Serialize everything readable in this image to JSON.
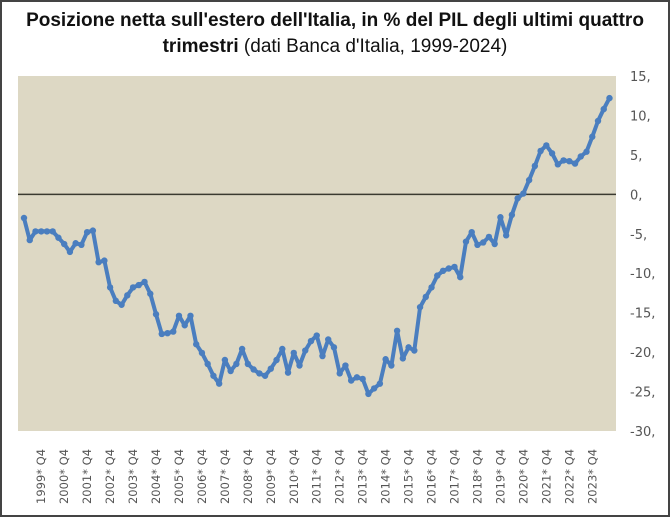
{
  "chart_data": {
    "type": "line",
    "title_bold": "Posizione netta sull'estero dell'Italia, in % del PIL degli ultimi quattro trimestri",
    "title_normal": "(dati Banca d'Italia, 1999-2024)",
    "xlabel": "",
    "ylabel": "",
    "ylim": [
      -30,
      15
    ],
    "y_ticks": [
      15,
      10,
      5,
      0,
      -5,
      -10,
      -15,
      -20,
      -25,
      -30
    ],
    "y_tick_labels": [
      "15,",
      "10,",
      "5,",
      "0,",
      "-5,",
      "-10,",
      "-15,",
      "-20,",
      "-25,",
      "-30,"
    ],
    "x_start_quarter": "1999 Q1",
    "x_tick_labels": [
      "1999* Q4",
      "2000* Q4",
      "2001* Q4",
      "2002* Q4",
      "2003* Q4",
      "2004* Q4",
      "2005* Q4",
      "2006* Q4",
      "2007* Q4",
      "2008* Q4",
      "2009* Q4",
      "2010* Q4",
      "2011* Q4",
      "2012* Q4",
      "2013* Q4",
      "2014* Q4",
      "2015* Q4",
      "2016* Q4",
      "2017* Q4",
      "2018* Q4",
      "2019* Q4",
      "2020* Q4",
      "2021* Q4",
      "2022* Q4",
      "2023* Q4"
    ],
    "grid": false,
    "series": [
      {
        "name": "Posizione netta sull'estero (% PIL)",
        "color": "#4A7EBF",
        "values": [
          -3.0,
          -5.8,
          -4.7,
          -4.7,
          -4.7,
          -4.7,
          -5.5,
          -6.3,
          -7.3,
          -6.2,
          -6.4,
          -4.8,
          -4.6,
          -8.6,
          -8.4,
          -11.8,
          -13.5,
          -14.0,
          -12.8,
          -11.8,
          -11.5,
          -11.1,
          -12.6,
          -15.2,
          -17.7,
          -17.6,
          -17.4,
          -15.4,
          -16.6,
          -15.4,
          -19.0,
          -20.1,
          -21.5,
          -23.0,
          -24.0,
          -21.0,
          -22.4,
          -21.5,
          -19.6,
          -21.5,
          -22.2,
          -22.7,
          -23.0,
          -22.1,
          -21.0,
          -19.6,
          -22.6,
          -20.1,
          -21.7,
          -19.8,
          -18.6,
          -17.9,
          -20.5,
          -18.4,
          -19.4,
          -22.7,
          -21.7,
          -23.6,
          -23.2,
          -23.4,
          -25.3,
          -24.6,
          -24.0,
          -20.9,
          -21.7,
          -17.3,
          -20.8,
          -19.4,
          -19.8,
          -14.3,
          -13.0,
          -11.8,
          -10.3,
          -9.7,
          -9.4,
          -9.2,
          -10.5,
          -6.0,
          -4.8,
          -6.4,
          -6.1,
          -5.4,
          -6.3,
          -2.9,
          -5.2,
          -2.6,
          -0.5,
          0.1,
          1.8,
          3.6,
          5.5,
          6.2,
          5.2,
          3.8,
          4.3,
          4.2,
          3.9,
          4.8,
          5.4,
          7.3,
          9.3,
          10.8,
          12.2
        ]
      }
    ],
    "colors": {
      "plot_background": "#DDD8C4",
      "zero_line": "#3a3a30"
    }
  }
}
